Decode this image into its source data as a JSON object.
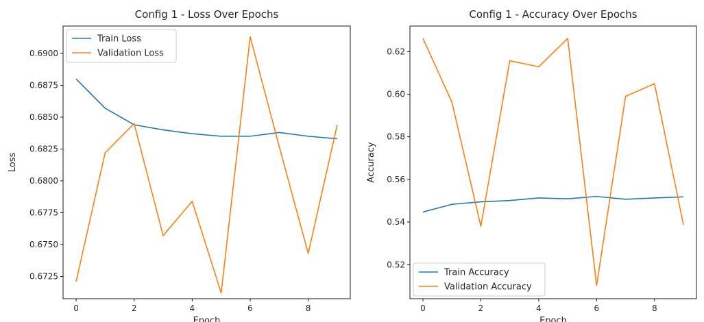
{
  "chart_data": [
    {
      "type": "line",
      "title": "Config 1 - Loss Over Epochs",
      "xlabel": "Epoch",
      "ylabel": "Loss",
      "x": [
        0,
        1,
        2,
        3,
        4,
        5,
        6,
        7,
        8,
        9
      ],
      "xlim": [
        -0.45,
        9.45
      ],
      "ylim": [
        0.67075,
        0.69215
      ],
      "xticks": [
        0,
        2,
        4,
        6,
        8
      ],
      "xtick_labels": [
        "0",
        "2",
        "4",
        "6",
        "8"
      ],
      "yticks": [
        0.6725,
        0.675,
        0.6775,
        0.68,
        0.6825,
        0.685,
        0.6875,
        0.69
      ],
      "ytick_labels": [
        "0.6725",
        "0.6750",
        "0.6775",
        "0.6800",
        "0.6825",
        "0.6850",
        "0.6875",
        "0.6900"
      ],
      "grid": false,
      "legend_position": "upper-left",
      "series": [
        {
          "name": "Train Loss",
          "color": "#1f77b4",
          "values": [
            0.688,
            0.6857,
            0.6844,
            0.684,
            0.6837,
            0.6835,
            0.6835,
            0.6838,
            0.6835,
            0.6833
          ]
        },
        {
          "name": "Validation Loss",
          "color": "#ff7f0e",
          "values": [
            0.6721,
            0.6822,
            0.6845,
            0.6757,
            0.6784,
            0.6712,
            0.6913,
            0.6827,
            0.6743,
            0.6844
          ]
        }
      ]
    },
    {
      "type": "line",
      "title": "Config 1 - Accuracy Over Epochs",
      "xlabel": "Epoch",
      "ylabel": "Accuracy",
      "x": [
        0,
        1,
        2,
        3,
        4,
        5,
        6,
        7,
        8,
        9
      ],
      "xlim": [
        -0.45,
        9.45
      ],
      "ylim": [
        0.504,
        0.632
      ],
      "xticks": [
        0,
        2,
        4,
        6,
        8
      ],
      "xtick_labels": [
        "0",
        "2",
        "4",
        "6",
        "8"
      ],
      "yticks": [
        0.52,
        0.54,
        0.56,
        0.58,
        0.6,
        0.62
      ],
      "ytick_labels": [
        "0.52",
        "0.54",
        "0.56",
        "0.58",
        "0.60",
        "0.62"
      ],
      "grid": false,
      "legend_position": "lower-left",
      "series": [
        {
          "name": "Train Accuracy",
          "color": "#1f77b4",
          "values": [
            0.5447,
            0.5483,
            0.5495,
            0.5501,
            0.5513,
            0.5509,
            0.552,
            0.5507,
            0.5513,
            0.5518
          ]
        },
        {
          "name": "Validation Accuracy",
          "color": "#ff7f0e",
          "values": [
            0.6262,
            0.5963,
            0.538,
            0.6157,
            0.6129,
            0.6262,
            0.5102,
            0.599,
            0.6049,
            0.5387
          ]
        }
      ]
    }
  ]
}
